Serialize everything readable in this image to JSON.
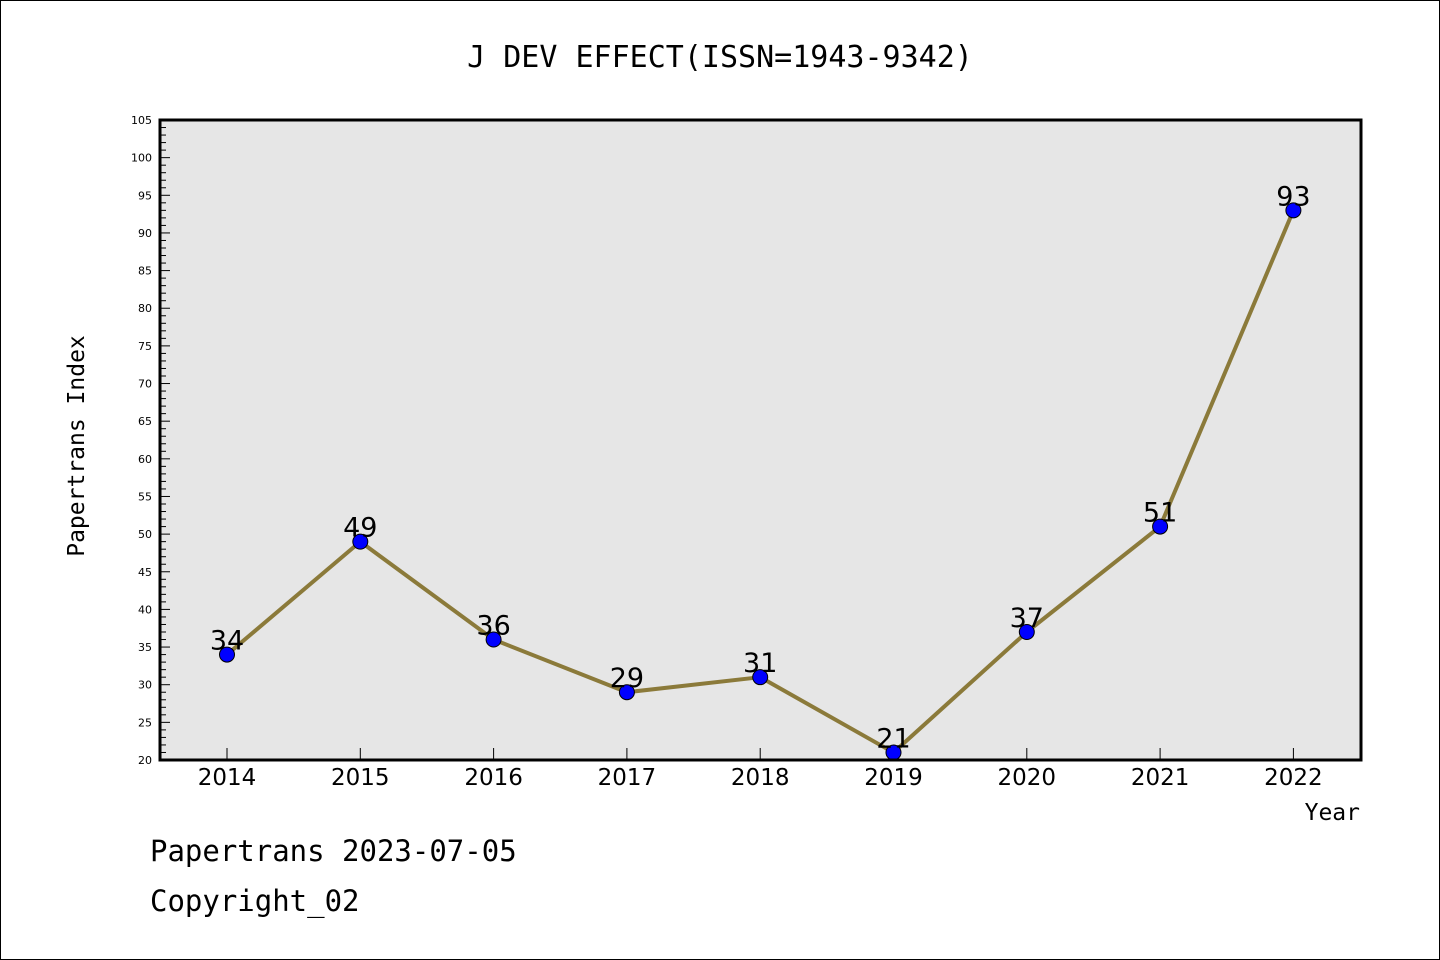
{
  "chart_data": {
    "type": "line",
    "title": "J DEV EFFECT(ISSN=1943-9342)",
    "xlabel": "Year",
    "ylabel": "Papertrans Index",
    "categories": [
      "2014",
      "2015",
      "2016",
      "2017",
      "2018",
      "2019",
      "2020",
      "2021",
      "2022"
    ],
    "series": [
      {
        "values": [
          34,
          49,
          36,
          29,
          31,
          21,
          37,
          51,
          93
        ]
      }
    ],
    "ylim": [
      20,
      105
    ],
    "y_major_step": 5,
    "y_minor_step": 1,
    "grid": false,
    "data_labels": true,
    "plot_background": "#e6e6e6",
    "line_color": "#8b7a3a",
    "marker_color": "#0000ff"
  },
  "footer": {
    "line1": "Papertrans 2023-07-05",
    "line2": "Copyright_02"
  }
}
